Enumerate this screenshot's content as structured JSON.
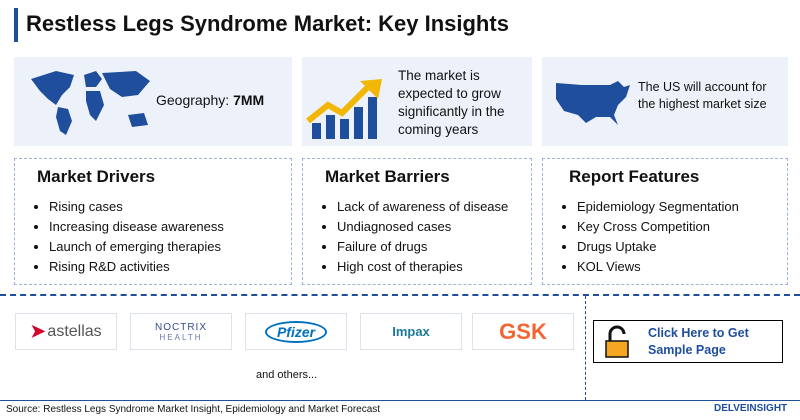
{
  "header": {
    "title": "Restless Legs Syndrome Market: Key Insights"
  },
  "highlights": [
    {
      "label": "Geography:",
      "value": "7MM"
    },
    {
      "text": "The market is expected to grow significantly in the coming years"
    },
    {
      "text": "The US will account for the highest market size"
    }
  ],
  "panels": [
    {
      "title": "Market Drivers",
      "items": [
        "Rising cases",
        "Increasing disease awareness",
        "Launch of emerging therapies",
        "Rising R&D activities"
      ]
    },
    {
      "title": "Market Barriers",
      "items": [
        "Lack of awareness of disease",
        "Undiagnosed cases",
        "Failure of drugs",
        "High cost of therapies"
      ]
    },
    {
      "title": "Report Features",
      "items": [
        "Epidemiology Segmentation",
        "Key Cross Competition",
        "Drugs Uptake",
        "KOL Views"
      ]
    }
  ],
  "logos": [
    "astellas",
    "NOCTRIX",
    "HEALTH",
    "Pfizer",
    "Impax",
    "GSK"
  ],
  "others": "and others...",
  "cta": "Click Here to Get Sample Page",
  "footer": {
    "source": "Source: Restless Legs Syndrome Market Insight, Epidemiology and Market Forecast",
    "brand": "DELVEINSIGHT"
  }
}
